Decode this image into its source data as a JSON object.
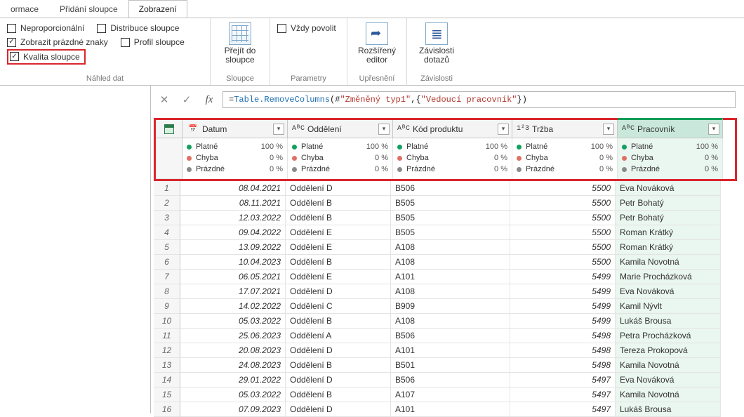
{
  "tabs": {
    "t0": "ormace",
    "t1": "Přidání sloupce",
    "t2": "Zobrazení"
  },
  "ribbon": {
    "checks": {
      "neprop": "Neproporcionální",
      "distrib": "Distribuce sloupce",
      "zobrazPrazdne": "Zobrazit prázdné znaky",
      "profil": "Profil sloupce",
      "kvalita": "Kvalita sloupce"
    },
    "group1_label": "Náhled dat",
    "gotoCol1": "Přejít do",
    "gotoCol2": "sloupce",
    "group2_label": "Sloupce",
    "alwaysAllow": "Vždy povolit",
    "group3_label": "Parametry",
    "advEditor1": "Rozšířený",
    "advEditor2": "editor",
    "group4_label": "Upřesnění",
    "deps1": "Závislosti",
    "deps2": "dotazů",
    "group5_label": "Závislosti"
  },
  "formula": {
    "prefix": "= ",
    "func": "Table.RemoveColumns",
    "mid1": "(#",
    "str1": "\"Změněný typ1\"",
    "mid2": ",{",
    "str2": "\"Vedoucí pracovník\"",
    "mid3": "})"
  },
  "columns": {
    "c0": "Datum",
    "c1": "Oddělení",
    "c2": "Kód produktu",
    "c3": "Tržba",
    "c4": "Pracovník",
    "typeDate": "📅",
    "typeText": "AᴮC",
    "typeNum": "1²3"
  },
  "quality": {
    "valid": "Platné",
    "error": "Chyba",
    "empty": "Prázdné",
    "p100": "100 %",
    "p0": "0 %"
  },
  "rows": [
    {
      "n": "1",
      "d": "08.04.2021",
      "o": "Oddělení D",
      "k": "B506",
      "t": "5500",
      "p": "Eva Nováková"
    },
    {
      "n": "2",
      "d": "08.11.2021",
      "o": "Oddělení B",
      "k": "B505",
      "t": "5500",
      "p": "Petr Bohatý"
    },
    {
      "n": "3",
      "d": "12.03.2022",
      "o": "Oddělení B",
      "k": "B505",
      "t": "5500",
      "p": "Petr Bohatý"
    },
    {
      "n": "4",
      "d": "09.04.2022",
      "o": "Oddělení E",
      "k": "B505",
      "t": "5500",
      "p": "Roman Krátký"
    },
    {
      "n": "5",
      "d": "13.09.2022",
      "o": "Oddělení E",
      "k": "A108",
      "t": "5500",
      "p": "Roman Krátký"
    },
    {
      "n": "6",
      "d": "10.04.2023",
      "o": "Oddělení B",
      "k": "A108",
      "t": "5500",
      "p": "Kamila Novotná"
    },
    {
      "n": "7",
      "d": "06.05.2021",
      "o": "Oddělení E",
      "k": "A101",
      "t": "5499",
      "p": "Marie Procházková"
    },
    {
      "n": "8",
      "d": "17.07.2021",
      "o": "Oddělení D",
      "k": "A108",
      "t": "5499",
      "p": "Eva Nováková"
    },
    {
      "n": "9",
      "d": "14.02.2022",
      "o": "Oddělení C",
      "k": "B909",
      "t": "5499",
      "p": "Kamil Nývlt"
    },
    {
      "n": "10",
      "d": "05.03.2022",
      "o": "Oddělení B",
      "k": "A108",
      "t": "5499",
      "p": "Lukáš Brousa"
    },
    {
      "n": "11",
      "d": "25.06.2023",
      "o": "Oddělení A",
      "k": "B506",
      "t": "5498",
      "p": "Petra Procházková"
    },
    {
      "n": "12",
      "d": "20.08.2023",
      "o": "Oddělení D",
      "k": "A101",
      "t": "5498",
      "p": "Tereza Prokopová"
    },
    {
      "n": "13",
      "d": "24.08.2023",
      "o": "Oddělení B",
      "k": "B501",
      "t": "5498",
      "p": "Kamila Novotná"
    },
    {
      "n": "14",
      "d": "29.01.2022",
      "o": "Oddělení D",
      "k": "B506",
      "t": "5497",
      "p": "Eva Nováková"
    },
    {
      "n": "15",
      "d": "05.03.2022",
      "o": "Oddělení B",
      "k": "A107",
      "t": "5497",
      "p": "Kamila Novotná"
    },
    {
      "n": "16",
      "d": "07.09.2023",
      "o": "Oddělení D",
      "k": "A101",
      "t": "5497",
      "p": "Lukáš Brousa"
    }
  ]
}
